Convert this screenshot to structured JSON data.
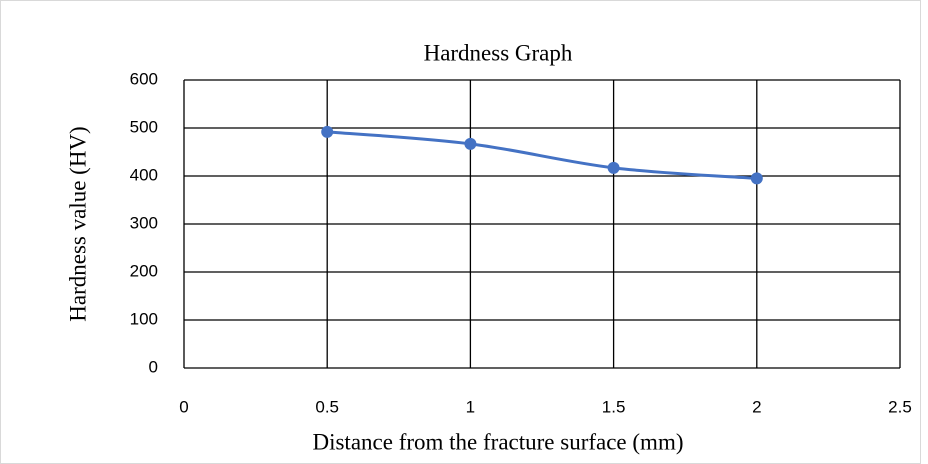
{
  "chart_data": {
    "type": "line",
    "title": "Hardness Graph",
    "x_label": "Distance from the fracture surface (mm)",
    "y_label": "Hardness value (HV)",
    "x": [
      0.5,
      1,
      1.5,
      2
    ],
    "series": [
      {
        "color": "#4472c4",
        "values": [
          492,
          467,
          417,
          395
        ]
      }
    ],
    "xlim": [
      0,
      2.5
    ],
    "xticks": [
      0,
      0.5,
      1,
      1.5,
      2,
      2.5
    ],
    "ylim": [
      0,
      600
    ],
    "yticks": [
      0,
      100,
      200,
      300,
      400,
      500,
      600
    ],
    "grid": true,
    "smooth": true
  }
}
